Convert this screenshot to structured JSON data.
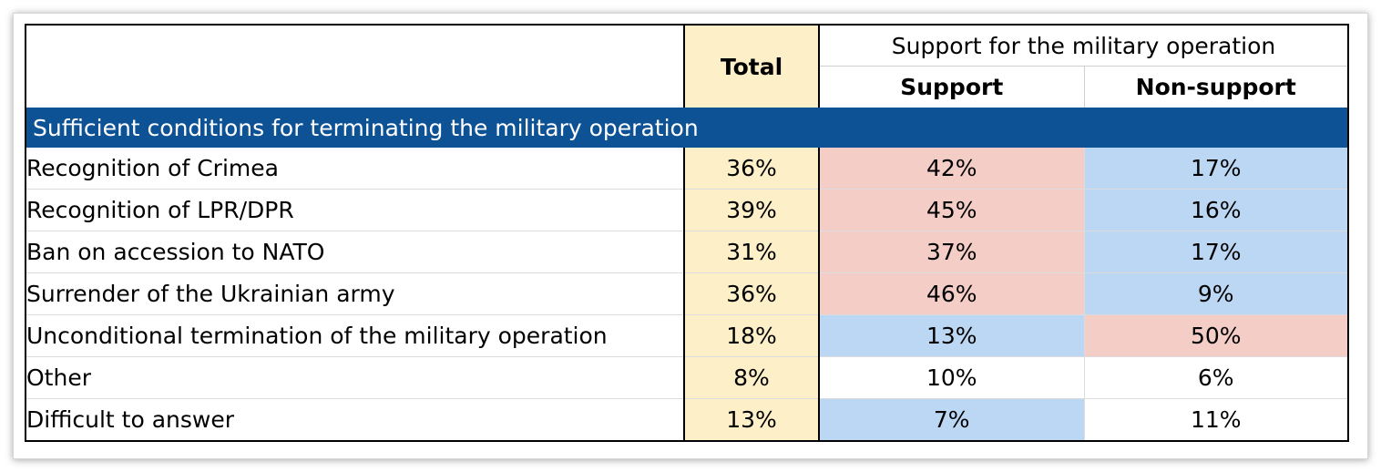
{
  "chart_data": {
    "type": "table",
    "header": {
      "total": "Total",
      "group": "Support for the military operation",
      "support": "Support",
      "non_support": "Non-support"
    },
    "section_title": "Sufficient conditions for terminating the military operation",
    "columns": [
      "Total",
      "Support",
      "Non-support"
    ],
    "highlight_colors": {
      "total": "#fdf0c8",
      "high": "#f4cdc7",
      "low": "#bcd7f3",
      "section": "#0e5296"
    },
    "rows": [
      {
        "label": "Recognition of Crimea",
        "total": "36%",
        "support": "42%",
        "non_support": "17%",
        "support_shade": "high",
        "non_support_shade": "low"
      },
      {
        "label": "Recognition of LPR/DPR",
        "total": "39%",
        "support": "45%",
        "non_support": "16%",
        "support_shade": "high",
        "non_support_shade": "low"
      },
      {
        "label": "Ban on accession to NATO",
        "total": "31%",
        "support": "37%",
        "non_support": "17%",
        "support_shade": "high",
        "non_support_shade": "low"
      },
      {
        "label": "Surrender of the Ukrainian army",
        "total": "36%",
        "support": "46%",
        "non_support": "9%",
        "support_shade": "high",
        "non_support_shade": "low"
      },
      {
        "label": "Unconditional termination of the military operation",
        "total": "18%",
        "support": "13%",
        "non_support": "50%",
        "support_shade": "low",
        "non_support_shade": "high"
      },
      {
        "label": "Other",
        "total": "8%",
        "support": "10%",
        "non_support": "6%",
        "support_shade": "none",
        "non_support_shade": "none"
      },
      {
        "label": "Difficult to answer",
        "total": "13%",
        "support": "7%",
        "non_support": "11%",
        "support_shade": "low",
        "non_support_shade": "none"
      }
    ]
  }
}
